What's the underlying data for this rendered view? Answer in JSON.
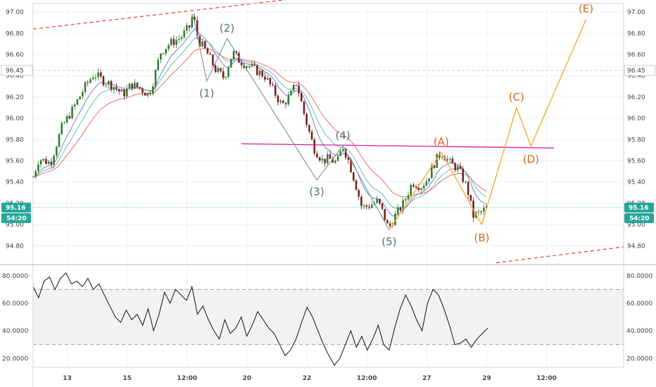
{
  "chart_data": [
    {
      "type": "candlestick",
      "panel": "price",
      "colors": {
        "up": "#2e7d32",
        "down": "#7a1f1f",
        "ema_fast": "#5c6bc0",
        "ema_mid": "#4db6ac",
        "ema_slow": "#ef5350",
        "grey_wave": "#78909c",
        "orange_wave": "#f5a623",
        "resistance": "#d81b9a",
        "channel": "#e53935",
        "current": "#26a69a",
        "label_grey": "#546e7a",
        "label_orange": "#d2691e"
      },
      "ylim": [
        94.65,
        97.08
      ],
      "y_ticks": [
        "97.00",
        "96.80",
        "96.60",
        "96.40",
        "96.20",
        "96.00",
        "95.80",
        "95.60",
        "95.40",
        "95.20",
        "95.00",
        "94.80"
      ],
      "x_ticks": [
        "13",
        "15",
        "12:00",
        "20",
        "22",
        "12:00",
        "27",
        "29",
        "12:00"
      ],
      "marked_levels": [
        {
          "value": 96.45,
          "label": "96.45"
        }
      ],
      "current_price": {
        "value": 95.16,
        "label": "95.16",
        "countdown": "54:20"
      },
      "price_path": [
        [
          0,
          95.45
        ],
        [
          1,
          95.62
        ],
        [
          3,
          95.58
        ],
        [
          5,
          95.92
        ],
        [
          7,
          96.1
        ],
        [
          9,
          96.3
        ],
        [
          10.5,
          96.42
        ],
        [
          12,
          96.36
        ],
        [
          14,
          96.3
        ],
        [
          15.5,
          96.22
        ],
        [
          17,
          96.32
        ],
        [
          18.5,
          96.28
        ],
        [
          20,
          96.22
        ],
        [
          21,
          96.4
        ],
        [
          22,
          96.62
        ],
        [
          23.5,
          96.7
        ],
        [
          25.5,
          96.76
        ],
        [
          27,
          96.86
        ],
        [
          27.6,
          96.98
        ],
        [
          28.5,
          96.74
        ],
        [
          30,
          96.62
        ],
        [
          31.5,
          96.46
        ],
        [
          33,
          96.38
        ],
        [
          34.5,
          96.62
        ],
        [
          35.5,
          96.55
        ],
        [
          37,
          96.5
        ],
        [
          38.5,
          96.45
        ],
        [
          40,
          96.4
        ],
        [
          41.5,
          96.26
        ],
        [
          43,
          96.12
        ],
        [
          44.5,
          96.22
        ],
        [
          45.5,
          96.34
        ],
        [
          47,
          96.0
        ],
        [
          48.5,
          95.72
        ],
        [
          50,
          95.6
        ],
        [
          51,
          95.62
        ],
        [
          52.5,
          95.58
        ],
        [
          53.5,
          95.74
        ],
        [
          54.5,
          95.6
        ],
        [
          55.5,
          95.42
        ],
        [
          56.8,
          95.16
        ],
        [
          58.2,
          95.18
        ],
        [
          59.5,
          95.22
        ],
        [
          60.5,
          95.1
        ],
        [
          61.4,
          94.96
        ],
        [
          62.5,
          95.08
        ],
        [
          64,
          95.2
        ],
        [
          65.5,
          95.4
        ],
        [
          67,
          95.36
        ],
        [
          68,
          95.42
        ],
        [
          69.5,
          95.6
        ],
        [
          70.5,
          95.68
        ],
        [
          72,
          95.58
        ],
        [
          73.5,
          95.52
        ],
        [
          75,
          95.34
        ],
        [
          76,
          95.08
        ],
        [
          77.5,
          95.12
        ],
        [
          78.5,
          95.16
        ]
      ],
      "grey_wave_points": [
        {
          "x": 30,
          "y": 96.35,
          "label": "(1)"
        },
        {
          "x": 33.5,
          "y": 96.75,
          "label": "(2)"
        },
        {
          "x": 49,
          "y": 95.42,
          "label": "(3)"
        },
        {
          "x": 53.5,
          "y": 95.74,
          "label": "(4)"
        },
        {
          "x": 61.5,
          "y": 94.95,
          "label": "(5)"
        }
      ],
      "grey_wave_start": {
        "x": 27.6,
        "y": 96.98
      },
      "orange_wave_points": [
        {
          "x": 61.5,
          "y": 94.95,
          "label": ""
        },
        {
          "x": 70.5,
          "y": 95.68,
          "label": "(A)"
        },
        {
          "x": 77.5,
          "y": 95.0,
          "label": "(B)"
        },
        {
          "x": 83.5,
          "y": 96.1,
          "label": "(C)"
        },
        {
          "x": 86,
          "y": 95.74,
          "label": "(D)"
        },
        {
          "x": 95.5,
          "y": 96.93,
          "label": "(E)"
        }
      ],
      "resistance_line": {
        "x1": 36,
        "y1": 95.76,
        "x2": 90,
        "y2": 95.72
      },
      "channel_upper": {
        "x1": 0,
        "y1": 96.84,
        "x2": 65,
        "y2": 97.25
      },
      "channel_lower": {
        "x1": 80,
        "y1": 94.64,
        "x2": 102,
        "y2": 94.79
      }
    },
    {
      "type": "line",
      "panel": "oscillator",
      "ylim": [
        13.5,
        86
      ],
      "y_ticks": [
        "80.0000",
        "60.0000",
        "40.0000",
        "20.0000"
      ],
      "band": [
        30,
        70
      ],
      "series": [
        {
          "values": [
            [
              0,
              72
            ],
            [
              1,
              64
            ],
            [
              2,
              76
            ],
            [
              3,
              79
            ],
            [
              4,
              70
            ],
            [
              5,
              78
            ],
            [
              6,
              82
            ],
            [
              7,
              74
            ],
            [
              8,
              76
            ],
            [
              9,
              72
            ],
            [
              10,
              78
            ],
            [
              11,
              70
            ],
            [
              12,
              74
            ],
            [
              13,
              66
            ],
            [
              14,
              58
            ],
            [
              15,
              50
            ],
            [
              16,
              46
            ],
            [
              17,
              55
            ],
            [
              18,
              48
            ],
            [
              19,
              52
            ],
            [
              20,
              44
            ],
            [
              21,
              56
            ],
            [
              22,
              40
            ],
            [
              23,
              52
            ],
            [
              24,
              68
            ],
            [
              25,
              60
            ],
            [
              26,
              70
            ],
            [
              27,
              66
            ],
            [
              28,
              62
            ],
            [
              29,
              72
            ],
            [
              30,
              52
            ],
            [
              31,
              58
            ],
            [
              32,
              48
            ],
            [
              33,
              40
            ],
            [
              34,
              34
            ],
            [
              35,
              48
            ],
            [
              36,
              38
            ],
            [
              37,
              42
            ],
            [
              38,
              50
            ],
            [
              39,
              36
            ],
            [
              40,
              44
            ],
            [
              41,
              54
            ],
            [
              42,
              48
            ],
            [
              43,
              42
            ],
            [
              44,
              38
            ],
            [
              45,
              30
            ],
            [
              46,
              22
            ],
            [
              47,
              26
            ],
            [
              48,
              34
            ],
            [
              49,
              46
            ],
            [
              50,
              57
            ],
            [
              51,
              50
            ],
            [
              52,
              40
            ],
            [
              53,
              30
            ],
            [
              54,
              22
            ],
            [
              55,
              15
            ],
            [
              56,
              20
            ],
            [
              57,
              30
            ],
            [
              58,
              40
            ],
            [
              59,
              28
            ],
            [
              60,
              36
            ],
            [
              61,
              26
            ],
            [
              62,
              34
            ],
            [
              63,
              44
            ],
            [
              64,
              30
            ],
            [
              65,
              26
            ],
            [
              66,
              42
            ],
            [
              67,
              56
            ],
            [
              68,
              66
            ],
            [
              69,
              58
            ],
            [
              70,
              48
            ],
            [
              71,
              40
            ],
            [
              72,
              60
            ],
            [
              73,
              70
            ],
            [
              74,
              66
            ],
            [
              75,
              56
            ],
            [
              76,
              44
            ],
            [
              77,
              30
            ],
            [
              78,
              31
            ],
            [
              79,
              34
            ],
            [
              80,
              28
            ],
            [
              81,
              34
            ],
            [
              82,
              38
            ],
            [
              83,
              42
            ]
          ]
        }
      ]
    }
  ]
}
